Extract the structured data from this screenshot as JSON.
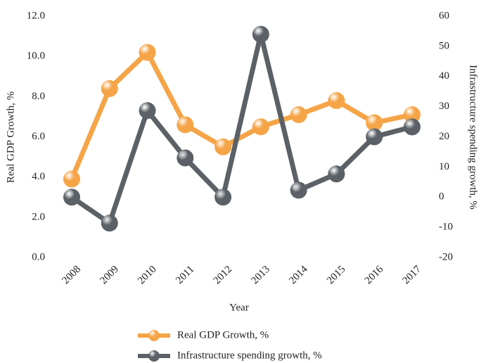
{
  "chart_data": {
    "type": "line",
    "x_label": "Year",
    "y_label": "Real GDP Growth, %",
    "y2_label": "Infrastructure spending growth, %",
    "categories": [
      "2008",
      "2009",
      "2010",
      "2011",
      "2012",
      "2013",
      "2014",
      "2015",
      "2016",
      "2017"
    ],
    "series": [
      {
        "name": "Real GDP Growth, %",
        "color": "#f5a447",
        "values": [
          3.9,
          8.4,
          10.2,
          6.6,
          5.5,
          6.5,
          7.1,
          7.8,
          6.7,
          7.1
        ]
      },
      {
        "name": "Infrastructure spending growth, %",
        "color": "#5b6166",
        "axis": "y2",
        "values": [
          0,
          -8.6,
          28.7,
          13,
          0,
          54,
          2.3,
          7.7,
          20,
          23.3
        ]
      }
    ],
    "ylim": [
      0,
      12
    ],
    "yticks": [
      {
        "value": 0,
        "label": "0.0"
      },
      {
        "value": 2,
        "label": "2.0"
      },
      {
        "value": 4,
        "label": "4.0"
      },
      {
        "value": 6,
        "label": "6.0"
      },
      {
        "value": 8,
        "label": "8.0"
      },
      {
        "value": 10,
        "label": "10.0"
      },
      {
        "value": 12,
        "label": "12.0"
      }
    ],
    "y2lim": [
      -20,
      60
    ],
    "y2ticks": [
      -20,
      -10,
      0,
      10,
      20,
      30,
      40,
      50,
      60
    ],
    "legend": "bottom"
  }
}
